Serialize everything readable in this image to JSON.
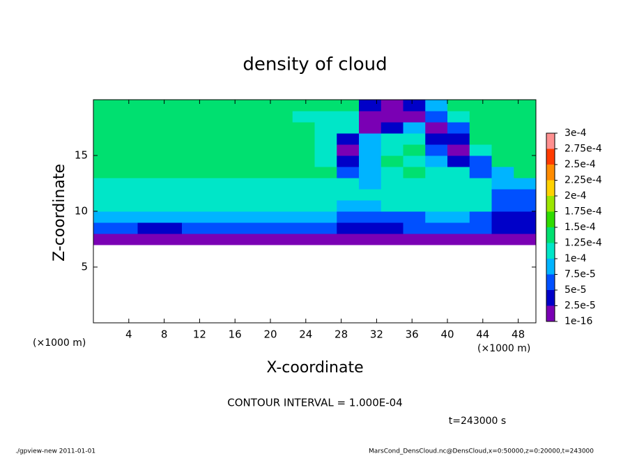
{
  "chart_data": {
    "type": "heatmap",
    "title": "density of cloud",
    "x_label": "X-coordinate",
    "y_label": "Z-coordinate",
    "x_unit": "(×1000 m)",
    "y_unit": "(×1000 m)",
    "subtitle": "CONTOUR INTERVAL = 1.000E-04",
    "time_label": "t=243000 s",
    "footer_left": "./gpview-new  2011-01-01",
    "footer_right": "MarsCond_DensCloud.nc@DensCloud,x=0:50000,z=0:20000,t=243000",
    "xlim": [
      0,
      50
    ],
    "ylim": [
      0,
      20
    ],
    "xticks": [
      4,
      8,
      12,
      16,
      20,
      24,
      28,
      32,
      36,
      40,
      44,
      48
    ],
    "yticks": [
      5,
      10,
      15
    ],
    "x": [
      1.25,
      3.75,
      6.25,
      8.75,
      11.25,
      13.75,
      16.25,
      18.75,
      21.25,
      23.75,
      26.25,
      28.75,
      31.25,
      33.75,
      36.25,
      38.75,
      41.25,
      43.75,
      46.25,
      48.75
    ],
    "z": [
      7.5,
      8.5,
      9.5,
      10.5,
      11.5,
      12.5,
      13.5,
      14.5,
      15.5,
      16.5,
      17.5,
      18.5,
      19.5
    ],
    "values": [
      [
        1e-05,
        1e-05,
        1e-05,
        1e-05,
        1e-05,
        1e-05,
        1e-05,
        1e-05,
        1e-05,
        1e-05,
        1e-05,
        1e-05,
        1e-05,
        1e-05,
        1e-05,
        1e-05,
        1e-05,
        1e-05,
        1e-05,
        1e-05
      ],
      [
        5e-05,
        5e-05,
        4e-05,
        4e-05,
        5e-05,
        5e-05,
        5e-05,
        5e-05,
        5e-05,
        5e-05,
        5e-05,
        4e-05,
        3e-05,
        4e-05,
        5e-05,
        5e-05,
        5e-05,
        5e-05,
        3e-05,
        4e-05
      ],
      [
        8e-05,
        8e-05,
        8e-05,
        8e-05,
        8e-05,
        8e-05,
        8e-05,
        8e-05,
        8e-05,
        8e-05,
        8e-05,
        6e-05,
        5e-05,
        6e-05,
        7e-05,
        8e-05,
        8e-05,
        7e-05,
        4e-05,
        4e-05
      ],
      [
        0.00011,
        0.00011,
        0.00011,
        0.00011,
        0.00011,
        0.00011,
        0.00011,
        0.00011,
        0.00011,
        0.00011,
        0.0001,
        9e-05,
        9e-05,
        0.0001,
        0.0001,
        0.0001,
        0.00011,
        0.0001,
        5e-05,
        5e-05
      ],
      [
        0.00011,
        0.00011,
        0.00011,
        0.00011,
        0.00011,
        0.00011,
        0.00011,
        0.00011,
        0.00011,
        0.00011,
        0.00011,
        0.00011,
        0.0001,
        0.00011,
        0.00011,
        0.00011,
        0.00011,
        0.00011,
        7e-05,
        6e-05
      ],
      [
        0.00012,
        0.00012,
        0.00012,
        0.00012,
        0.00011,
        0.00011,
        0.00011,
        0.00012,
        0.00012,
        0.00012,
        0.00012,
        0.0001,
        9e-05,
        0.00011,
        0.00012,
        0.00011,
        0.00012,
        0.0001,
        9e-05,
        8e-05
      ],
      [
        0.00013,
        0.00013,
        0.00013,
        0.00013,
        0.00013,
        0.00013,
        0.00013,
        0.00013,
        0.00013,
        0.00013,
        0.00013,
        6e-05,
        8e-05,
        0.00011,
        0.00013,
        0.00011,
        0.0001,
        5e-05,
        9e-05,
        0.00013
      ],
      [
        0.00013,
        0.00013,
        0.00013,
        0.00013,
        0.00013,
        0.00013,
        0.00013,
        0.00013,
        0.00013,
        0.00013,
        0.00011,
        3e-05,
        9e-05,
        0.00013,
        0.00011,
        9e-05,
        3e-05,
        7e-05,
        0.00013,
        0.00013
      ],
      [
        0.00013,
        0.00013,
        0.00013,
        0.00013,
        0.00013,
        0.00013,
        0.00013,
        0.00013,
        0.00013,
        0.00013,
        0.00011,
        2e-05,
        9e-05,
        0.00011,
        0.00013,
        6e-05,
        2e-05,
        0.0001,
        0.00013,
        0.00013
      ],
      [
        0.00013,
        0.00013,
        0.00013,
        0.00013,
        0.00013,
        0.00013,
        0.00013,
        0.00013,
        0.00013,
        0.00013,
        0.00011,
        3e-05,
        8e-05,
        0.00011,
        0.0001,
        4e-05,
        3e-05,
        0.00013,
        0.00013,
        0.00013
      ],
      [
        0.00013,
        0.00013,
        0.00013,
        0.00013,
        0.00013,
        0.00013,
        0.00013,
        0.00013,
        0.00013,
        0.00013,
        0.00011,
        0.0001,
        1e-05,
        3e-05,
        8e-05,
        2e-05,
        6e-05,
        0.00013,
        0.00013,
        0.00013
      ],
      [
        0.00013,
        0.00013,
        0.00013,
        0.00013,
        0.00013,
        0.00013,
        0.00013,
        0.00013,
        0.00013,
        0.00012,
        0.00012,
        0.00012,
        2e-05,
        1e-05,
        2e-05,
        6e-05,
        0.0001,
        0.00013,
        0.00013,
        0.00013
      ],
      [
        0.00013,
        0.00013,
        0.00013,
        0.00013,
        0.00013,
        0.00013,
        0.00013,
        0.00013,
        0.00013,
        0.00013,
        0.00013,
        0.00013,
        3e-05,
        2e-05,
        4e-05,
        8e-05,
        0.00013,
        0.00013,
        0.00013,
        0.00013
      ]
    ],
    "levels": [
      {
        "value": 1e-16,
        "label": "1e-16"
      },
      {
        "value": 2.5e-05,
        "label": "2.5e-5"
      },
      {
        "value": 5e-05,
        "label": "5e-5"
      },
      {
        "value": 7.5e-05,
        "label": "7.5e-5"
      },
      {
        "value": 0.0001,
        "label": "1e-4"
      },
      {
        "value": 0.000125,
        "label": "1.25e-4"
      },
      {
        "value": 0.00015,
        "label": "1.5e-4"
      },
      {
        "value": 0.000175,
        "label": "1.75e-4"
      },
      {
        "value": 0.0002,
        "label": "2e-4"
      },
      {
        "value": 0.000225,
        "label": "2.25e-4"
      },
      {
        "value": 0.00025,
        "label": "2.5e-4"
      },
      {
        "value": 0.000275,
        "label": "2.75e-4"
      },
      {
        "value": 0.0003,
        "label": "3e-4"
      }
    ],
    "colors": [
      "#7a00b4",
      "#0000c8",
      "#0050ff",
      "#00b4ff",
      "#00e6c8",
      "#00e070",
      "#30dc00",
      "#9ce600",
      "#ffd200",
      "#ff8c00",
      "#ff3c00",
      "#ff9090"
    ]
  }
}
